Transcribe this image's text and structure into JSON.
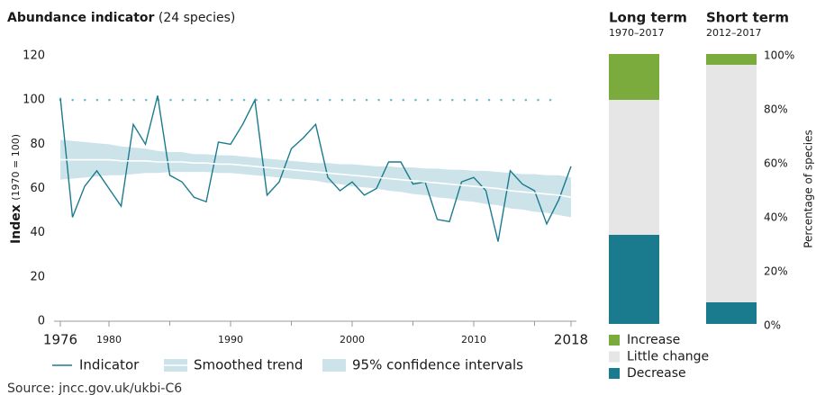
{
  "chart_data": [
    {
      "type": "line",
      "title": "Abundance indicator",
      "title_note": "(24 species)",
      "ylabel": "Index",
      "ylabel_note": "(1970 = 100)",
      "x": [
        1976,
        1977,
        1978,
        1979,
        1980,
        1981,
        1982,
        1983,
        1984,
        1985,
        1986,
        1987,
        1988,
        1989,
        1990,
        1991,
        1992,
        1993,
        1994,
        1995,
        1996,
        1997,
        1998,
        1999,
        2000,
        2001,
        2002,
        2003,
        2004,
        2005,
        2006,
        2007,
        2008,
        2009,
        2010,
        2011,
        2012,
        2013,
        2014,
        2015,
        2016,
        2017,
        2018
      ],
      "xlim": [
        1976,
        2018
      ],
      "xticks": [
        1976,
        1980,
        1990,
        2000,
        2010,
        2018
      ],
      "minor_xticks": [
        1985,
        1995,
        2005,
        2015
      ],
      "ylim": [
        0,
        120
      ],
      "yticks": [
        0,
        20,
        40,
        60,
        80,
        100,
        120
      ],
      "baseline": 100,
      "baseline_color": "#6cbcc6",
      "series": [
        {
          "name": "Indicator",
          "color": "#1b7b8e",
          "values": [
            101,
            47,
            61,
            68,
            60,
            52,
            89,
            80,
            102,
            66,
            63,
            56,
            54,
            81,
            80,
            89,
            100,
            57,
            63,
            78,
            83,
            89,
            65,
            59,
            63,
            57,
            60,
            72,
            72,
            62,
            63,
            46,
            45,
            63,
            65,
            59,
            36,
            68,
            62,
            59,
            44,
            55,
            70
          ]
        },
        {
          "name": "Smoothed trend",
          "color": "#ffffff",
          "values": [
            73,
            73,
            73,
            73,
            73,
            72.5,
            72.5,
            72.5,
            72,
            72,
            72,
            71.5,
            71.5,
            71,
            71,
            70.5,
            70,
            69.5,
            69,
            68.5,
            68,
            67.5,
            67,
            66.5,
            66,
            65.5,
            65,
            64.5,
            64,
            63.5,
            63,
            62.5,
            62,
            61.5,
            61,
            60.5,
            60,
            59,
            58.5,
            58,
            57.5,
            57,
            56
          ]
        },
        {
          "name": "95% confidence intervals",
          "color": "#cbe3e9",
          "lower": [
            64,
            64.5,
            65,
            65.5,
            66,
            66,
            66.5,
            67,
            67,
            67.5,
            67.5,
            67.5,
            67.5,
            67,
            67,
            66.5,
            66,
            65.5,
            65,
            64.5,
            64,
            63.5,
            62.5,
            62,
            61,
            60.5,
            60,
            59,
            58.5,
            57.5,
            57,
            56,
            55.5,
            54.5,
            54,
            53,
            52.5,
            51,
            50.5,
            49.5,
            49,
            48,
            47
          ],
          "upper": [
            82,
            81.5,
            81,
            80.5,
            80,
            79,
            78.5,
            78,
            77,
            76.5,
            76.5,
            75.5,
            75.5,
            75,
            75,
            74.5,
            74,
            73.5,
            73,
            72.5,
            72,
            71.5,
            71.5,
            71,
            71,
            70.5,
            70,
            70,
            69.5,
            69.5,
            69,
            69,
            68.5,
            68.5,
            68,
            68,
            67.5,
            67,
            66.5,
            66.5,
            66,
            66,
            65
          ]
        }
      ]
    },
    {
      "type": "stacked_bar",
      "categories": [
        "Long term",
        "Short term"
      ],
      "subtitles": [
        "1970–2017",
        "2012–2017"
      ],
      "ylabel": "Percentage of species",
      "ylim": [
        0,
        100
      ],
      "yticks": [
        {
          "value": 0,
          "label": "0%"
        },
        {
          "value": 20,
          "label": "20%"
        },
        {
          "value": 40,
          "label": "40%"
        },
        {
          "value": 60,
          "label": "60%"
        },
        {
          "value": 80,
          "label": "80%"
        },
        {
          "value": 100,
          "label": "100%"
        }
      ],
      "series": [
        {
          "name": "Decrease",
          "color": "#1b7b8e",
          "values": [
            33,
            8
          ]
        },
        {
          "name": "Little change",
          "color": "#e6e6e6",
          "values": [
            50,
            88
          ]
        },
        {
          "name": "Increase",
          "color": "#7aab3c",
          "values": [
            17,
            4
          ]
        }
      ]
    }
  ],
  "source": "Source: jncc.gov.uk/ukbi-C6"
}
